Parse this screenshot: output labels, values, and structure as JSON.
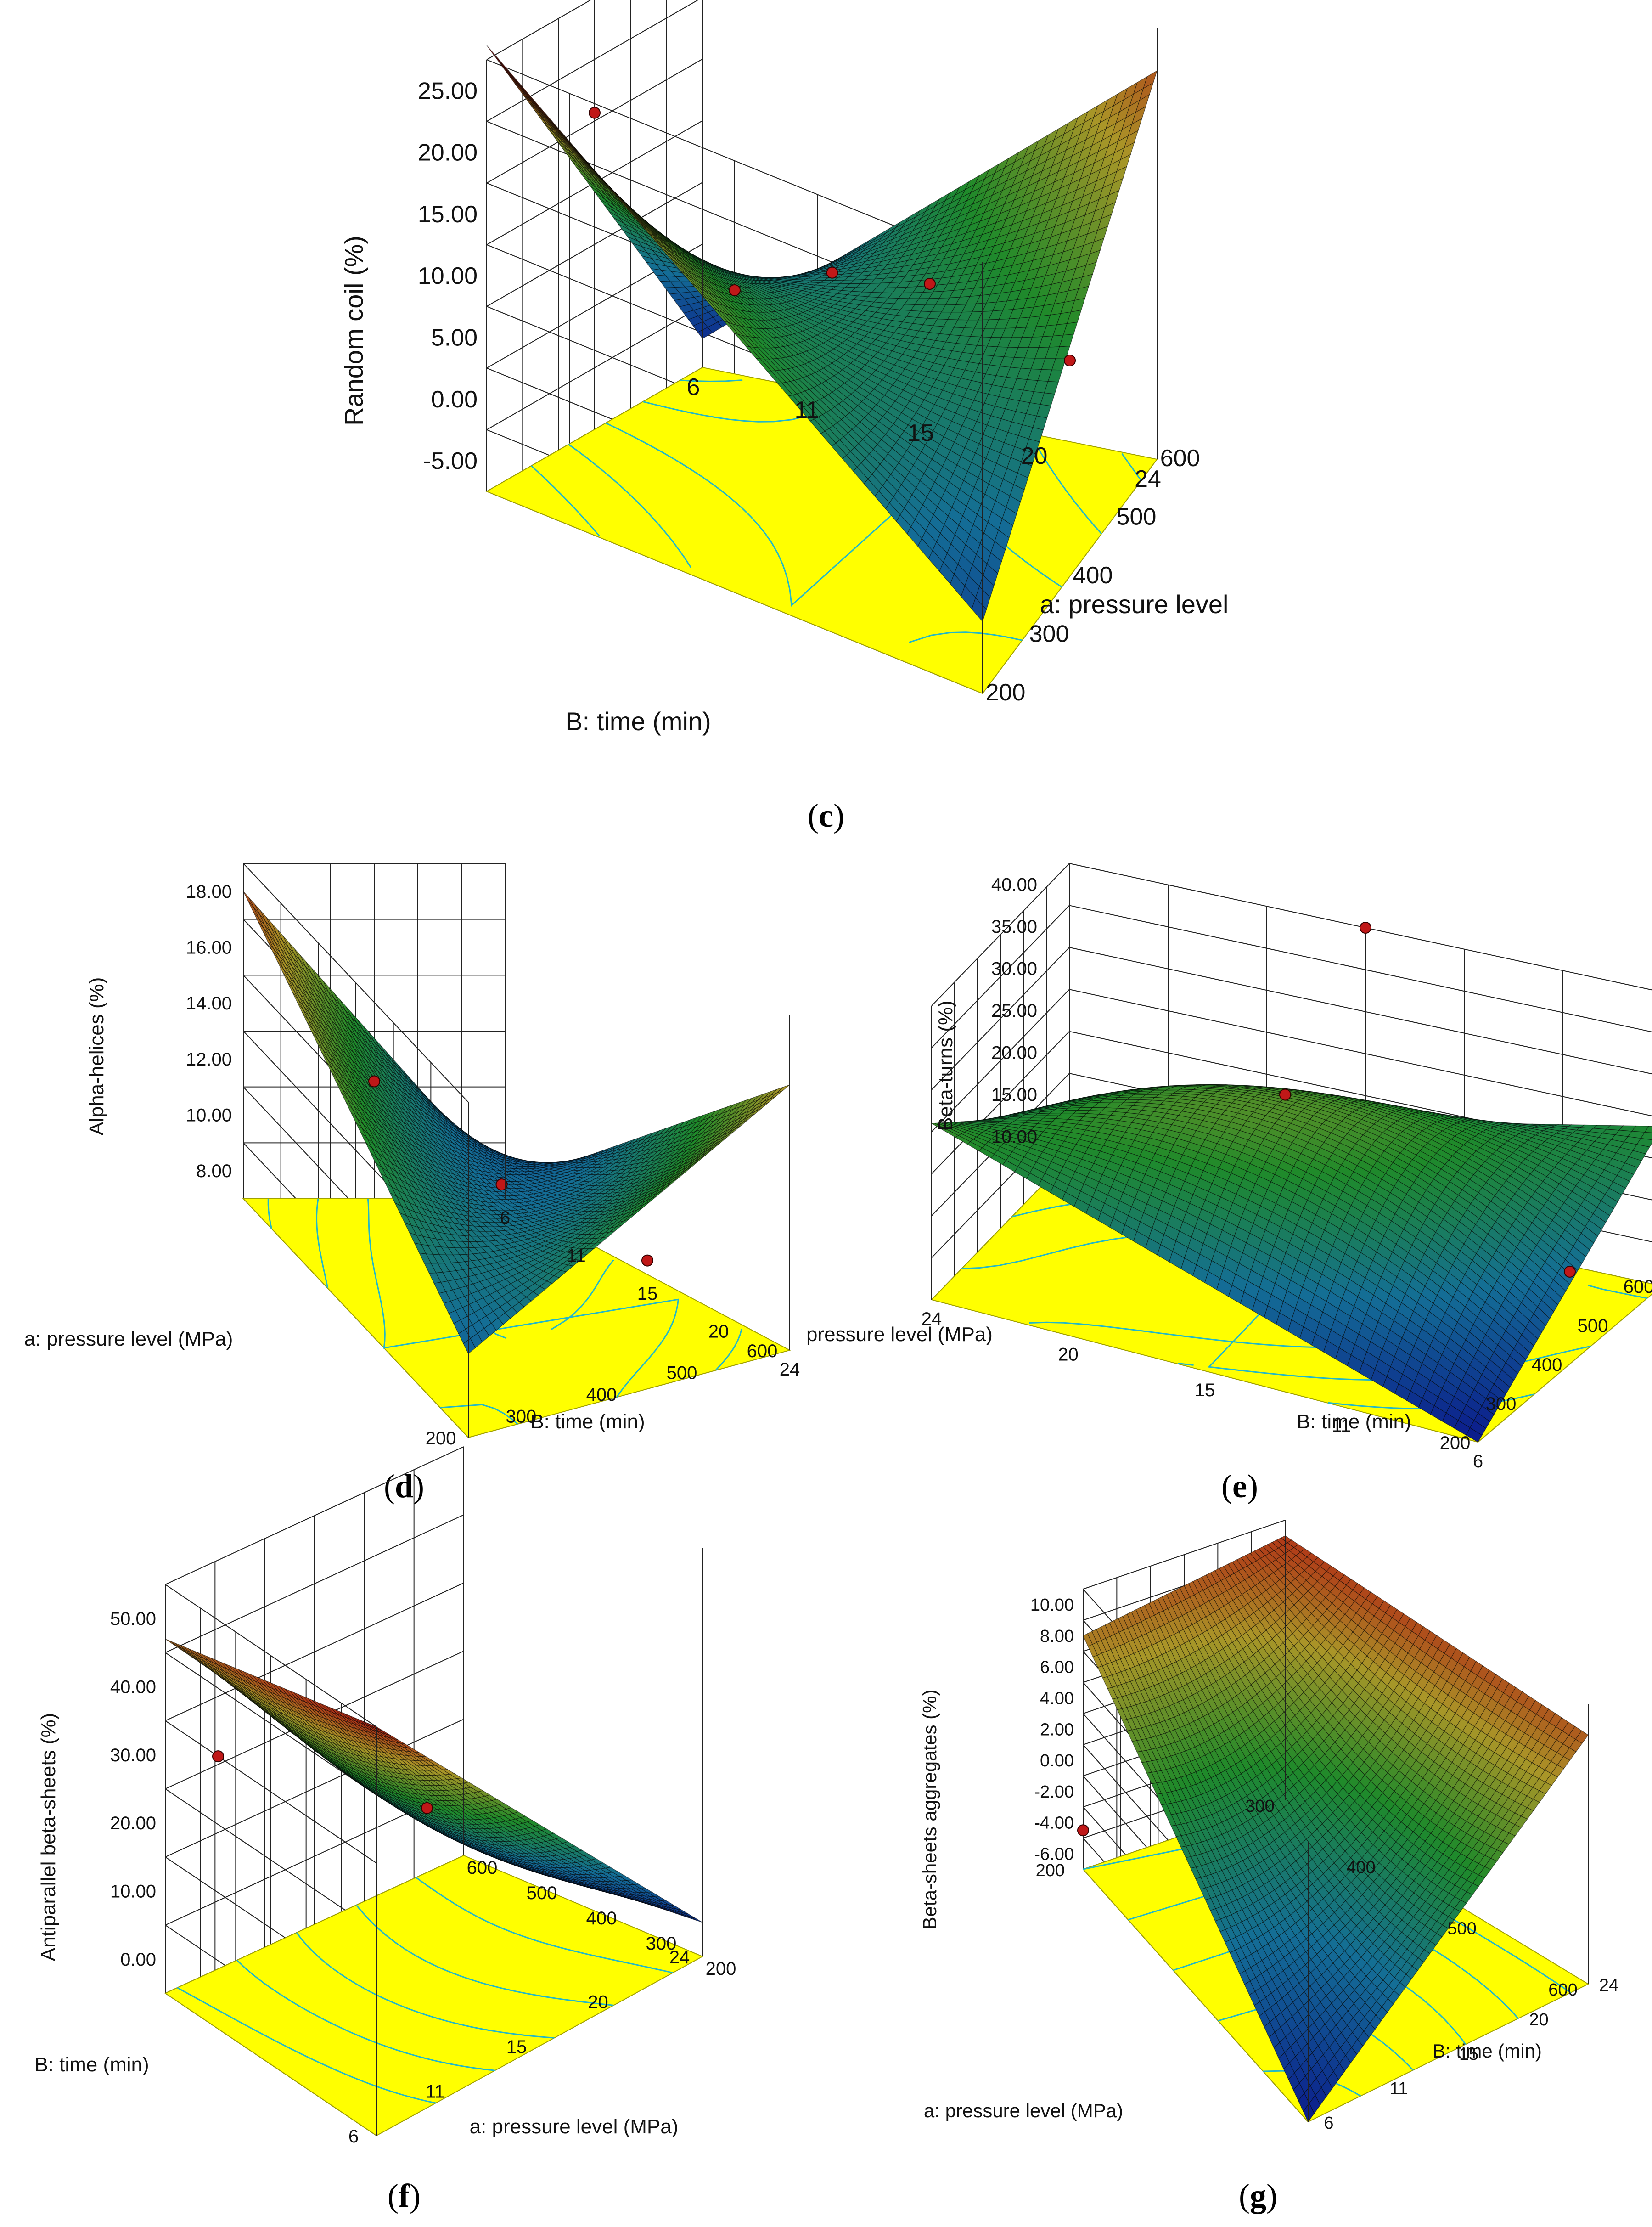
{
  "colors": {
    "floor": "#ffff00",
    "floor_stroke": "#a0a000",
    "contour": "#22b8c8",
    "grid": "#222222",
    "design_point": "#c01818",
    "design_point_light": "#e07a7a",
    "surface_low": "#0b1a8c",
    "surface_mid": "#1f8a2a",
    "surface_high": "#b21a12",
    "surface_dark": "#050505"
  },
  "panels": [
    {
      "id": "c",
      "caption_open": "(",
      "caption_letter": "c",
      "caption_close": ")",
      "chart_data": {
        "type": "surface3d",
        "title": "",
        "zlabel": "Random coil (%)",
        "xlabel": "B: time (min)",
        "ylabel": "a: pressure level",
        "z_ticks": [
          "-5.00",
          "0.00",
          "5.00",
          "10.00",
          "15.00",
          "20.00",
          "25.00"
        ],
        "x_ticks": [
          "6",
          "11",
          "15",
          "20",
          "24"
        ],
        "y_ticks": [
          "200",
          "300",
          "400",
          "500",
          "600"
        ],
        "zlim": [
          -5,
          25
        ],
        "x_range": [
          6,
          24
        ],
        "y_range": [
          200,
          600
        ],
        "corner_values": {
          "x_min_y_min": 26,
          "x_max_y_min": 0,
          "x_min_y_max": -3,
          "x_max_y_max": 22
        },
        "center_value": 8,
        "design_points": [
          {
            "time": 6,
            "pressure": 400,
            "value": 17
          },
          {
            "time": 15,
            "pressure": 200,
            "value": 16
          },
          {
            "time": 15,
            "pressure": 400,
            "value": 11
          },
          {
            "time": 24,
            "pressure": 400,
            "value": 10
          },
          {
            "time": 15,
            "pressure": 600,
            "value": 4
          }
        ]
      }
    },
    {
      "id": "d",
      "caption_open": "(",
      "caption_letter": "d",
      "caption_close": ")",
      "chart_data": {
        "type": "surface3d",
        "title": "",
        "zlabel": "Alpha-helices (%)",
        "xlabel": "B: time (min)",
        "ylabel": "a: pressure level (MPa)",
        "z_ticks": [
          "8.00",
          "10.00",
          "12.00",
          "14.00",
          "16.00",
          "18.00"
        ],
        "x_ticks": [
          "6",
          "11",
          "15",
          "20",
          "24"
        ],
        "y_ticks": [
          "200",
          "300",
          "400",
          "500",
          "600"
        ],
        "zlim": [
          6,
          18
        ],
        "x_range": [
          6,
          24
        ],
        "y_range": [
          200,
          600
        ],
        "corner_values": {
          "x_min_y_min": 17,
          "x_max_y_min": 9,
          "x_min_y_max": 6.5,
          "x_max_y_max": 15.5
        },
        "center_value": 9.6,
        "design_points": [
          {
            "time": 6,
            "pressure": 400,
            "value": 10.2
          },
          {
            "time": 15,
            "pressure": 400,
            "value": 10
          },
          {
            "time": 15,
            "pressure": 600,
            "value": 6.5
          }
        ]
      }
    },
    {
      "id": "e",
      "caption_open": "(",
      "caption_letter": "e",
      "caption_close": ")",
      "chart_data": {
        "type": "surface3d",
        "title": "",
        "zlabel": "Beta-turns (%)",
        "xlabel": "B: time (min)",
        "ylabel": "pressure level (MPa)",
        "z_ticks": [
          "10.00",
          "15.00",
          "20.00",
          "25.00",
          "30.00",
          "35.00",
          "40.00"
        ],
        "x_ticks": [
          "24",
          "20",
          "15",
          "11",
          "6"
        ],
        "y_ticks": [
          "600",
          "500",
          "400",
          "300",
          "200"
        ],
        "zlim": [
          5,
          40
        ],
        "x_range": [
          6,
          24
        ],
        "y_range": [
          200,
          600
        ],
        "corner_values": {
          "x_min_y_min": 10,
          "x_max_y_min": 24,
          "x_min_y_max": 26,
          "x_max_y_max": 5
        },
        "center_value": 27,
        "design_points": [
          {
            "time": 15,
            "pressure": 200,
            "value": 40
          },
          {
            "time": 15,
            "pressure": 400,
            "value": 29
          },
          {
            "time": 24,
            "pressure": 400,
            "value": 16
          }
        ]
      }
    },
    {
      "id": "f",
      "caption_open": "(",
      "caption_letter": "f",
      "caption_close": ")",
      "chart_data": {
        "type": "surface3d",
        "title": "",
        "zlabel": "Antiparallel beta-sheets (%)",
        "xlabel": "a: pressure level (MPa)",
        "ylabel": "B: time (min)",
        "z_ticks": [
          "0.00",
          "10.00",
          "20.00",
          "30.00",
          "40.00",
          "50.00"
        ],
        "x_ticks": [
          "600",
          "500",
          "400",
          "300",
          "200"
        ],
        "y_ticks": [
          "6",
          "11",
          "15",
          "20",
          "24"
        ],
        "zlim": [
          -10,
          50
        ],
        "x_range": [
          200,
          600
        ],
        "y_range": [
          6,
          24
        ],
        "corner_values": {
          "x_min_y_min": 42,
          "x_max_y_min": 50,
          "x_min_y_max": -8,
          "x_max_y_max": -5
        },
        "center_value": 14,
        "design_points": [
          {
            "pressure": 400,
            "time": 15,
            "value": 16
          },
          {
            "pressure": 300,
            "time": 6,
            "value": 30
          }
        ]
      }
    },
    {
      "id": "g",
      "caption_open": "(",
      "caption_letter": "g",
      "caption_close": ")",
      "chart_data": {
        "type": "surface3d",
        "title": "",
        "zlabel": "Beta-sheets aggregates (%)",
        "xlabel": "a: pressure level (MPa)",
        "ylabel": "B: time (min)",
        "z_ticks": [
          "-6.00",
          "-4.00",
          "-2.00",
          "0.00",
          "2.00",
          "4.00",
          "6.00",
          "8.00",
          "10.00"
        ],
        "x_ticks": [
          "300",
          "400",
          "500",
          "600"
        ],
        "x_tick_extra": "200",
        "y_ticks": [
          "6",
          "11",
          "15",
          "20",
          "24"
        ],
        "zlim": [
          -8,
          10
        ],
        "x_range": [
          200,
          600
        ],
        "y_range": [
          6,
          24
        ],
        "corner_values": {
          "x_min_y_min": 7,
          "x_max_y_min": -8,
          "x_min_y_max": 9,
          "x_max_y_max": 8
        },
        "center_value": 1,
        "design_points": [
          {
            "pressure": 200,
            "time": 6,
            "value": -5.5
          }
        ]
      }
    }
  ]
}
